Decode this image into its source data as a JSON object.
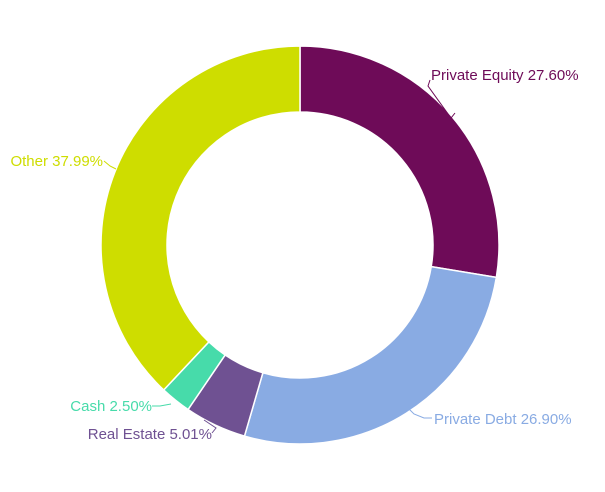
{
  "chart_data": {
    "type": "pie",
    "donut": true,
    "title": "",
    "slices": [
      {
        "name": "Private Equity",
        "value": 27.6,
        "label": "Private Equity 27.60%",
        "color": "#6e0b58"
      },
      {
        "name": "Private Debt",
        "value": 26.9,
        "label": "Private Debt 26.90%",
        "color": "#89abe3"
      },
      {
        "name": "Real Estate",
        "value": 5.01,
        "label": "Real Estate 5.01%",
        "color": "#6f5192"
      },
      {
        "name": "Cash",
        "value": 2.5,
        "label": "Cash 2.50%",
        "color": "#47dbaa"
      },
      {
        "name": "Other",
        "value": 37.99,
        "label": "Other 37.99%",
        "color": "#cedd00"
      }
    ]
  }
}
